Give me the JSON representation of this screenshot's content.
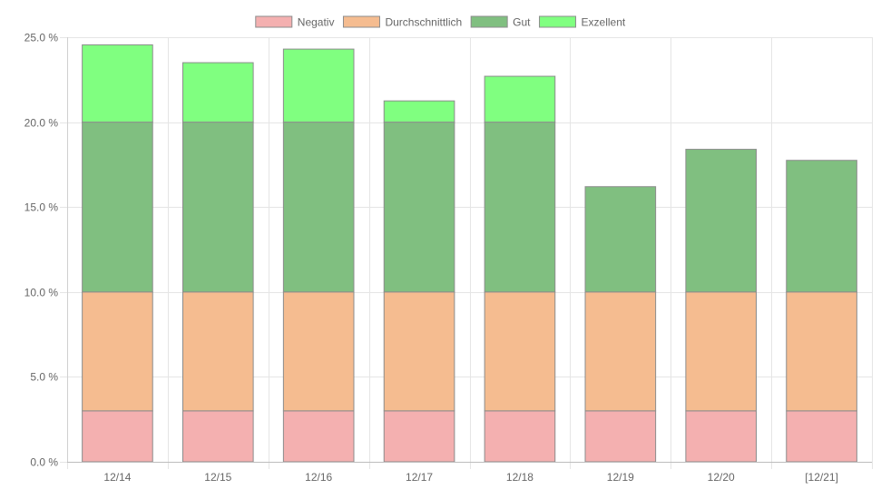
{
  "chart_data": {
    "type": "bar",
    "stacked": true,
    "categories": [
      "12/14",
      "12/15",
      "12/16",
      "12/17",
      "12/18",
      "12/19",
      "12/20",
      "[12/21]"
    ],
    "series": [
      {
        "name": "Negativ",
        "color": "#f4b0b0",
        "values": [
          3.0,
          3.0,
          3.0,
          3.0,
          3.0,
          3.0,
          3.0,
          3.0
        ]
      },
      {
        "name": "Durchschnittlich",
        "color": "#f5bc90",
        "values": [
          7.0,
          7.0,
          7.0,
          7.0,
          7.0,
          7.0,
          7.0,
          7.0
        ]
      },
      {
        "name": "Gut",
        "color": "#80bf80",
        "values": [
          10.0,
          10.0,
          10.0,
          10.0,
          10.0,
          6.2,
          8.4,
          7.75
        ]
      },
      {
        "name": "Exzellent",
        "color": "#80ff80",
        "values": [
          4.55,
          3.5,
          4.3,
          1.25,
          2.7,
          0,
          0,
          0
        ]
      }
    ],
    "y_ticks": [
      "0.0 %",
      "5.0 %",
      "10.0 %",
      "15.0 %",
      "20.0 %",
      "25.0 %"
    ],
    "ylim": [
      0,
      25
    ],
    "y_step": 5,
    "legend_position": "top",
    "grid": true,
    "bar_border_color": "#8c8c8c",
    "grid_color": "#e5e5e5",
    "text_color": "#666666"
  }
}
